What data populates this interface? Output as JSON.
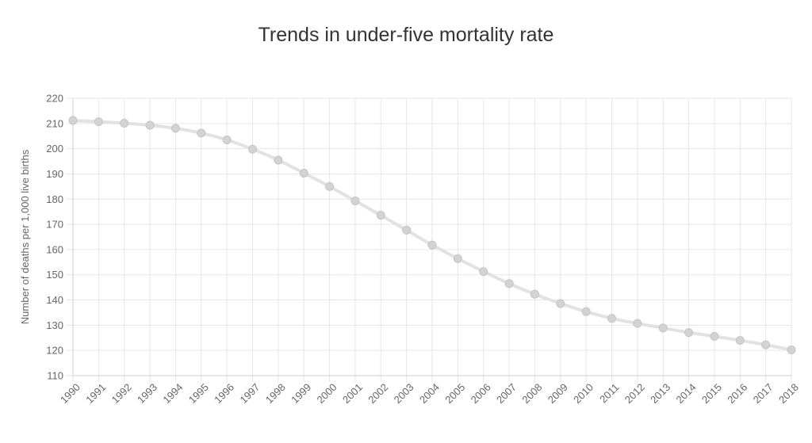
{
  "chart_data": {
    "type": "line",
    "title": "Trends in under-five mortality rate",
    "xlabel": "",
    "ylabel": "Number of deaths per 1,000 live births",
    "categories": [
      "1990",
      "1991",
      "1992",
      "1993",
      "1994",
      "1995",
      "1996",
      "1997",
      "1998",
      "1999",
      "2000",
      "2001",
      "2002",
      "2003",
      "2004",
      "2005",
      "2006",
      "2007",
      "2008",
      "2009",
      "2010",
      "2011",
      "2012",
      "2013",
      "2014",
      "2015",
      "2016",
      "2017",
      "2018"
    ],
    "series": [
      {
        "values": [
          211.2,
          210.7,
          210.1,
          209.3,
          208.1,
          206.2,
          203.5,
          199.8,
          195.5,
          190.3,
          185.0,
          179.3,
          173.6,
          167.7,
          161.8,
          156.4,
          151.3,
          146.5,
          142.3,
          138.6,
          135.4,
          132.7,
          130.7,
          128.9,
          127.1,
          125.6,
          124.0,
          122.2,
          120.2
        ],
        "color": "#d9d9d9"
      }
    ],
    "ylim": [
      110,
      220
    ],
    "yticks": [
      110,
      120,
      130,
      140,
      150,
      160,
      170,
      180,
      190,
      200,
      210,
      220
    ],
    "grid": true,
    "legend": "none"
  }
}
